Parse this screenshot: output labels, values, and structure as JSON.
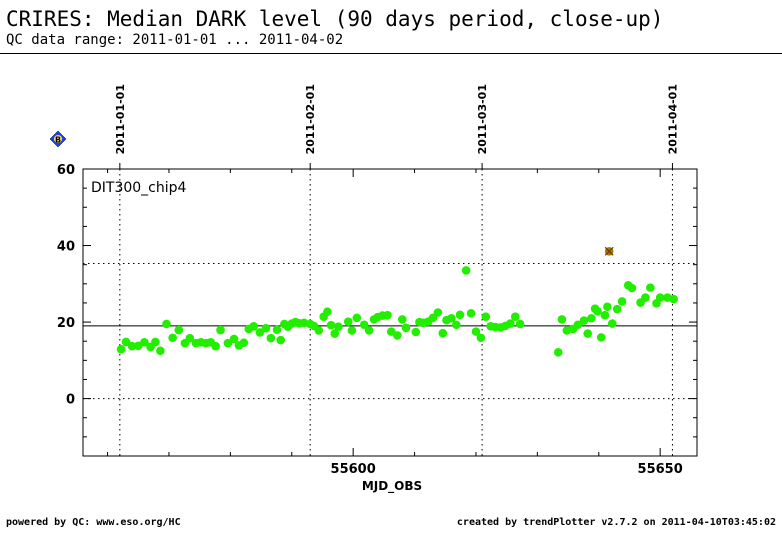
{
  "header": {
    "title": "CRIRES: Median DARK level (90 days period, close-up)",
    "subtitle": "QC data range: 2011-01-01 ... 2011-04-02"
  },
  "footer": {
    "left": "powered by QC: www.eso.org/HC",
    "right": "created by trendPlotter v2.7.2 on 2011-04-10T03:45:02"
  },
  "legend_badge": "B",
  "chart_data": {
    "type": "scatter",
    "title": "CRIRES: Median DARK level (90 days period, close-up)",
    "panel_label": "DIT300_chip4",
    "xlabel": "MJD_OBS",
    "ylabel": "",
    "xlim": [
      55556,
      55656
    ],
    "ylim": [
      -15,
      60
    ],
    "x_ticks": [
      55600,
      55650
    ],
    "y_ticks": [
      0,
      20,
      40,
      60
    ],
    "date_markers": [
      {
        "label": "2011-01-01",
        "x": 55562
      },
      {
        "label": "2011-02-01",
        "x": 55593
      },
      {
        "label": "2011-03-01",
        "x": 55621
      },
      {
        "label": "2011-04-01",
        "x": 55652
      }
    ],
    "reference_line": 19,
    "upper_limit_line": 35.3,
    "lower_limit_line": 0,
    "point_color": "#22ee00",
    "outlier_color": "#8a8a00",
    "series": [
      {
        "x": [
          55562.2,
          55563.0,
          55564.0,
          55565.0,
          55566.0,
          55567.0,
          55567.8,
          55568.6,
          55569.6,
          55570.6,
          55571.6,
          55572.6,
          55573.4,
          55574.4,
          55575.2,
          55576.0,
          55576.8,
          55577.6,
          55578.4,
          55579.6,
          55580.6,
          55581.4,
          55582.2,
          55583.0,
          55583.8,
          55584.8,
          55585.8,
          55586.6,
          55587.6,
          55588.2,
          55588.8,
          55589.4,
          55590.0,
          55590.6,
          55591.2,
          55592.0,
          55593.0,
          55593.6,
          55594.4,
          55595.2,
          55595.8,
          55596.4,
          55597.0,
          55597.6,
          55599.2,
          55599.8,
          55600.6,
          55601.8,
          55602.6,
          55603.4,
          55604.0,
          55604.8,
          55605.6,
          55606.2,
          55607.2,
          55608.0,
          55608.6,
          55610.2,
          55610.8,
          55611.4,
          55612.2,
          55613.0,
          55613.8,
          55614.6,
          55615.2,
          55616.0,
          55616.8,
          55617.4,
          55618.4,
          55619.2,
          55620.0,
          55620.8,
          55621.6,
          55622.4,
          55623.2,
          55624.0,
          55624.8,
          55625.6,
          55626.4,
          55627.2,
          55633.4,
          55634.0,
          55634.8,
          55635.8,
          55636.6,
          55637.6,
          55638.2,
          55638.8,
          55639.4,
          55639.8,
          55640.4,
          55641.0,
          55641.4,
          55642.2,
          55643.0,
          55643.8,
          55644.8,
          55645.4,
          55646.8,
          55647.6,
          55648.4,
          55649.4,
          55650.0,
          55651.2,
          55652.2
        ],
        "y": [
          12.9,
          14.8,
          13.7,
          13.8,
          14.7,
          13.5,
          14.8,
          12.5,
          19.5,
          15.9,
          17.9,
          14.5,
          15.8,
          14.5,
          14.7,
          14.5,
          14.7,
          13.7,
          17.9,
          14.5,
          15.6,
          13.9,
          14.6,
          18.2,
          18.9,
          17.3,
          18.4,
          15.8,
          18.0,
          15.3,
          19.5,
          18.8,
          19.6,
          20.0,
          19.7,
          19.8,
          19.5,
          19.0,
          17.8,
          21.4,
          22.7,
          19.2,
          17.0,
          18.8,
          20.1,
          17.8,
          21.1,
          19.3,
          17.8,
          20.7,
          21.3,
          21.7,
          21.8,
          17.5,
          16.5,
          20.7,
          18.5,
          17.4,
          20.0,
          19.8,
          20.1,
          21.1,
          22.5,
          17.1,
          20.5,
          21.0,
          19.3,
          21.9,
          33.5,
          22.3,
          17.5,
          15.9,
          21.4,
          18.9,
          18.7,
          18.6,
          19.0,
          19.6,
          21.4,
          19.5,
          12.1,
          20.7,
          17.8,
          18.2,
          19.3,
          20.4,
          17.0,
          21.0,
          23.5,
          22.8,
          16.0,
          21.8,
          24.0,
          19.6,
          23.4,
          25.4,
          29.6,
          28.9,
          25.1,
          26.4,
          29.0,
          24.9,
          26.4,
          26.4,
          26.0
        ]
      }
    ],
    "outliers": [
      {
        "x": 55641.7,
        "y": 38.5
      }
    ]
  }
}
